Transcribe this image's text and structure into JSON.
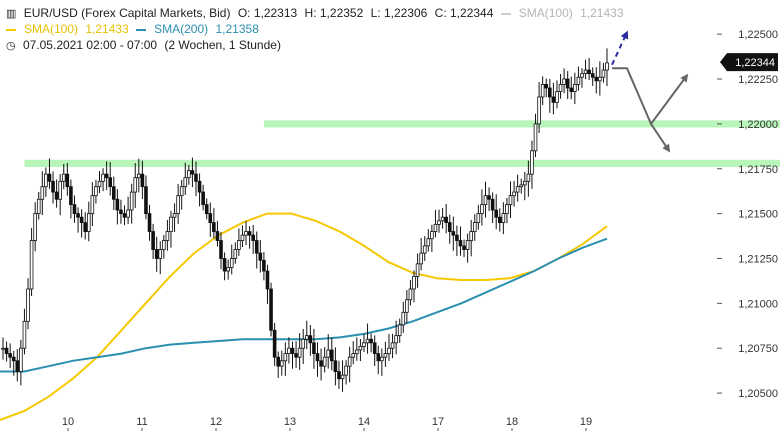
{
  "header": {
    "line1": {
      "icon": "candlestick-icon",
      "symbol": "EUR/USD (Forex Capital Markets, Bid)",
      "open": "O: 1,22313",
      "high": "H: 1,22352",
      "low": "L: 1,22306",
      "close": "C: 1,22344",
      "sma100_label": "SMA(100)",
      "sma100_value": "1,21433"
    },
    "line2": {
      "sma100_label": "SMA(100)",
      "sma100_value": "1,21433",
      "sma200_label": "SMA(200)",
      "sma200_value": "1,21358"
    },
    "line3": {
      "icon": "clock-icon",
      "timerange": "07.05.2021 02:00 - 07:00",
      "period": "(2 Wochen, 1 Stunde)"
    }
  },
  "colors": {
    "sma100": "#f5c800",
    "sma200": "#2a8fb0",
    "zone": "#b8f5b8",
    "candle": "#111111",
    "arrow_gray": "#666666",
    "arrow_blue": "#2a2aa0",
    "price_tag_bg": "#111111",
    "price_tag_text": "#ffffff"
  },
  "chart_data": {
    "type": "candlestick",
    "x_ticks": [
      "10",
      "11",
      "12",
      "13",
      "14",
      "17",
      "18",
      "19"
    ],
    "y_ticks": [
      "1,22500",
      "1,22250",
      "1,22000",
      "1,21750",
      "1,21500",
      "1,21250",
      "1,21000",
      "1,20750",
      "1,20500"
    ],
    "ylim": [
      1.2035,
      1.2259
    ],
    "current_price": 1.22344,
    "current_price_label": "1,22344",
    "zones": [
      {
        "from": 1.2198,
        "to": 1.2202,
        "x_start_index": 73
      },
      {
        "from": 1.2176,
        "to": 1.218,
        "x_start_index": 6
      }
    ],
    "close_path": [
      1.2075,
      1.2072,
      1.207,
      1.2068,
      1.2062,
      1.2075,
      1.209,
      1.2108,
      1.2135,
      1.215,
      1.2158,
      1.2165,
      1.2172,
      1.2168,
      1.2162,
      1.2158,
      1.2168,
      1.2172,
      1.2165,
      1.2155,
      1.215,
      1.2148,
      1.2145,
      1.214,
      1.215,
      1.216,
      1.2165,
      1.2168,
      1.2172,
      1.217,
      1.2165,
      1.2158,
      1.2152,
      1.215,
      1.2148,
      1.2152,
      1.2162,
      1.217,
      1.2172,
      1.2165,
      1.215,
      1.214,
      1.213,
      1.2125,
      1.213,
      1.2135,
      1.214,
      1.2148,
      1.215,
      1.216,
      1.2165,
      1.217,
      1.2174,
      1.2172,
      1.2168,
      1.2162,
      1.2155,
      1.215,
      1.2145,
      1.214,
      1.2135,
      1.2125,
      1.2118,
      1.212,
      1.2125,
      1.213,
      1.2135,
      1.2138,
      1.214,
      1.2138,
      1.2135,
      1.2128,
      1.2124,
      1.2118,
      1.2108,
      1.2085,
      1.207,
      1.2065,
      1.2068,
      1.2072,
      1.2075,
      1.2072,
      1.207,
      1.2075,
      1.208,
      1.2082,
      1.2078,
      1.2072,
      1.2068,
      1.2065,
      1.207,
      1.2074,
      1.2068,
      1.2062,
      1.2058,
      1.206,
      1.2065,
      1.207,
      1.2072,
      1.2074,
      1.2076,
      1.2078,
      1.208,
      1.2078,
      1.2072,
      1.2068,
      1.207,
      1.2072,
      1.2075,
      1.2078,
      1.2082,
      1.2088,
      1.2095,
      1.2102,
      1.2108,
      1.2115,
      1.2122,
      1.2128,
      1.2132,
      1.2136,
      1.214,
      1.2144,
      1.2146,
      1.2148,
      1.2145,
      1.214,
      1.2138,
      1.2135,
      1.2132,
      1.213,
      1.2135,
      1.214,
      1.2145,
      1.215,
      1.2155,
      1.216,
      1.2158,
      1.2152,
      1.2148,
      1.2145,
      1.215,
      1.2155,
      1.216,
      1.2162,
      1.2165,
      1.2166,
      1.2168,
      1.2172,
      1.2185,
      1.22,
      1.2215,
      1.2222,
      1.222,
      1.2215,
      1.2212,
      1.2218,
      1.2222,
      1.2225,
      1.222,
      1.2218,
      1.2222,
      1.2226,
      1.2228,
      1.223,
      1.2228,
      1.2226,
      1.2224,
      1.2226,
      1.223,
      1.2234
    ],
    "series": [
      {
        "name": "SMA(100)",
        "values": [
          1.2035,
          1.204,
          1.2048,
          1.2058,
          1.207,
          1.2085,
          1.21,
          1.2115,
          1.2128,
          1.2138,
          1.2145,
          1.215,
          1.215,
          1.2146,
          1.214,
          1.2132,
          1.2123,
          1.2117,
          1.2114,
          1.2113,
          1.2113,
          1.2114,
          1.2118,
          1.2125,
          1.2133,
          1.2143
        ]
      },
      {
        "name": "SMA(200)",
        "values": [
          1.2062,
          1.2062,
          1.2065,
          1.2068,
          1.207,
          1.2072,
          1.2075,
          1.2077,
          1.2078,
          1.2079,
          1.208,
          1.208,
          1.208,
          1.208,
          1.2081,
          1.2083,
          1.2086,
          1.209,
          1.2095,
          1.21,
          1.2106,
          1.2112,
          1.2118,
          1.2125,
          1.2131,
          1.2136
        ]
      }
    ],
    "forecast_arrows": [
      {
        "color": "gray",
        "points": [
          [
            1.2231,
            0
          ],
          [
            1.2231,
            1
          ],
          [
            1.22,
            2
          ],
          [
            1.2227,
            3
          ]
        ]
      },
      {
        "color": "gray",
        "points": [
          [
            1.22,
            2
          ],
          [
            1.2185,
            2.5
          ]
        ]
      },
      {
        "color": "blue",
        "dashed": true,
        "points": [
          [
            1.2233,
            0
          ],
          [
            1.2251,
            1
          ]
        ]
      }
    ]
  }
}
